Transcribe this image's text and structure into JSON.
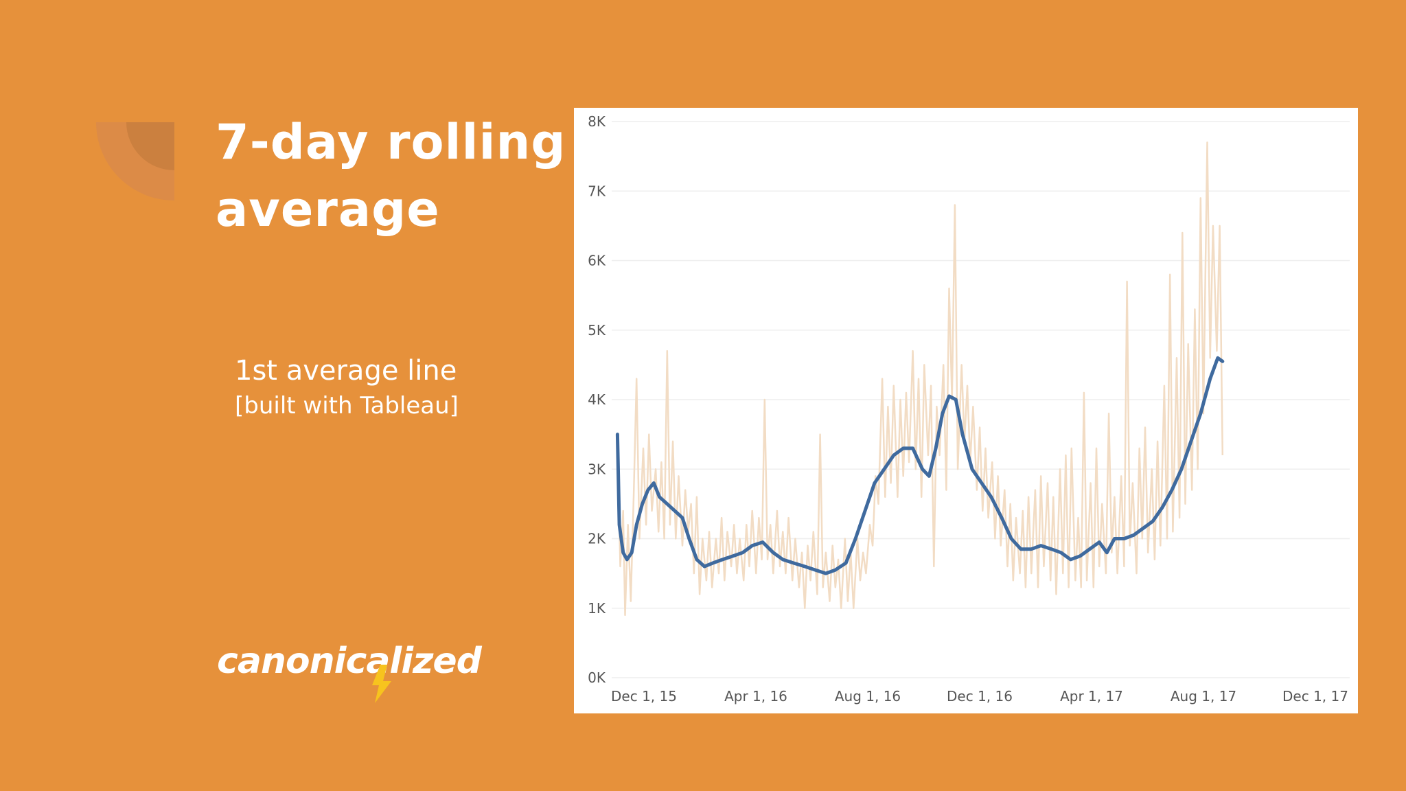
{
  "slide": {
    "title": "7-day rolling\naverage",
    "subtitle_line1": "1st average line",
    "subtitle_line2": "[built with Tableau]",
    "logo_text": "canonicalized"
  },
  "colors": {
    "background": "#E6913B",
    "raw_line": "#F2DCC4",
    "average_line": "#3F6A9E",
    "gridline": "#EEEEEE"
  },
  "chart_data": {
    "type": "line",
    "title": "",
    "xlabel": "",
    "ylabel": "",
    "x_ticks": [
      "Dec 1, 15",
      "Apr 1, 16",
      "Aug 1, 16",
      "Dec 1, 16",
      "Apr 1, 17",
      "Aug 1, 17",
      "Dec 1, 17"
    ],
    "y_ticks": [
      "0K",
      "1K",
      "2K",
      "3K",
      "4K",
      "5K",
      "6K",
      "7K",
      "8K"
    ],
    "ylim": [
      0,
      8000
    ],
    "x_range": [
      "2015-11-25",
      "2018-01-05"
    ],
    "grid": true,
    "legend": "none",
    "series": [
      {
        "role": "daily",
        "color": "#F2DCC4",
        "points": [
          [
            "2015-12-01",
            3500
          ],
          [
            "2015-12-04",
            1600
          ],
          [
            "2015-12-07",
            2400
          ],
          [
            "2015-12-09",
            900
          ],
          [
            "2015-12-12",
            2200
          ],
          [
            "2015-12-15",
            1100
          ],
          [
            "2015-12-18",
            2600
          ],
          [
            "2015-12-21",
            4300
          ],
          [
            "2015-12-24",
            2000
          ],
          [
            "2015-12-28",
            3300
          ],
          [
            "2015-12-31",
            2200
          ],
          [
            "2016-01-03",
            3500
          ],
          [
            "2016-01-06",
            2400
          ],
          [
            "2016-01-10",
            3000
          ],
          [
            "2016-01-13",
            2100
          ],
          [
            "2016-01-16",
            3100
          ],
          [
            "2016-01-19",
            2000
          ],
          [
            "2016-01-22",
            4700
          ],
          [
            "2016-01-25",
            2200
          ],
          [
            "2016-01-28",
            3400
          ],
          [
            "2016-01-31",
            2000
          ],
          [
            "2016-02-03",
            2900
          ],
          [
            "2016-02-07",
            1900
          ],
          [
            "2016-02-10",
            2700
          ],
          [
            "2016-02-13",
            2100
          ],
          [
            "2016-02-16",
            2500
          ],
          [
            "2016-02-19",
            1500
          ],
          [
            "2016-02-22",
            2600
          ],
          [
            "2016-02-25",
            1200
          ],
          [
            "2016-02-28",
            2000
          ],
          [
            "2016-03-03",
            1400
          ],
          [
            "2016-03-06",
            2100
          ],
          [
            "2016-03-09",
            1300
          ],
          [
            "2016-03-13",
            2000
          ],
          [
            "2016-03-16",
            1500
          ],
          [
            "2016-03-19",
            2300
          ],
          [
            "2016-03-22",
            1400
          ],
          [
            "2016-03-25",
            2100
          ],
          [
            "2016-03-29",
            1600
          ],
          [
            "2016-04-01",
            2200
          ],
          [
            "2016-04-04",
            1500
          ],
          [
            "2016-04-07",
            2000
          ],
          [
            "2016-04-11",
            1400
          ],
          [
            "2016-04-14",
            2200
          ],
          [
            "2016-04-17",
            1600
          ],
          [
            "2016-04-20",
            2400
          ],
          [
            "2016-04-24",
            1500
          ],
          [
            "2016-04-27",
            2300
          ],
          [
            "2016-04-30",
            1700
          ],
          [
            "2016-05-03",
            4000
          ],
          [
            "2016-05-06",
            1700
          ],
          [
            "2016-05-09",
            2200
          ],
          [
            "2016-05-12",
            1500
          ],
          [
            "2016-05-16",
            2400
          ],
          [
            "2016-05-19",
            1600
          ],
          [
            "2016-05-22",
            2100
          ],
          [
            "2016-05-25",
            1500
          ],
          [
            "2016-05-28",
            2300
          ],
          [
            "2016-06-01",
            1400
          ],
          [
            "2016-06-04",
            2000
          ],
          [
            "2016-06-08",
            1300
          ],
          [
            "2016-06-11",
            1800
          ],
          [
            "2016-06-14",
            1000
          ],
          [
            "2016-06-17",
            1900
          ],
          [
            "2016-06-20",
            1400
          ],
          [
            "2016-06-23",
            2100
          ],
          [
            "2016-06-27",
            1200
          ],
          [
            "2016-06-30",
            3500
          ],
          [
            "2016-07-03",
            1300
          ],
          [
            "2016-07-06",
            1800
          ],
          [
            "2016-07-10",
            1100
          ],
          [
            "2016-07-13",
            1900
          ],
          [
            "2016-07-16",
            1300
          ],
          [
            "2016-07-19",
            1700
          ],
          [
            "2016-07-22",
            1000
          ],
          [
            "2016-07-26",
            2000
          ],
          [
            "2016-07-29",
            1100
          ],
          [
            "2016-08-01",
            1800
          ],
          [
            "2016-08-04",
            1000
          ],
          [
            "2016-08-08",
            2000
          ],
          [
            "2016-08-11",
            1400
          ],
          [
            "2016-08-14",
            1800
          ],
          [
            "2016-08-17",
            1500
          ],
          [
            "2016-08-21",
            2200
          ],
          [
            "2016-08-24",
            1900
          ],
          [
            "2016-08-27",
            2900
          ],
          [
            "2016-08-30",
            2500
          ],
          [
            "2016-09-03",
            4300
          ],
          [
            "2016-09-06",
            2600
          ],
          [
            "2016-09-09",
            3900
          ],
          [
            "2016-09-12",
            2800
          ],
          [
            "2016-09-15",
            4200
          ],
          [
            "2016-09-19",
            2600
          ],
          [
            "2016-09-22",
            4000
          ],
          [
            "2016-09-25",
            2900
          ],
          [
            "2016-09-28",
            4100
          ],
          [
            "2016-10-01",
            3100
          ],
          [
            "2016-10-05",
            4700
          ],
          [
            "2016-10-08",
            3000
          ],
          [
            "2016-10-11",
            4300
          ],
          [
            "2016-10-14",
            2600
          ],
          [
            "2016-10-17",
            4500
          ],
          [
            "2016-10-21",
            3200
          ],
          [
            "2016-10-24",
            4200
          ],
          [
            "2016-10-27",
            1600
          ],
          [
            "2016-10-30",
            3900
          ],
          [
            "2016-11-02",
            3200
          ],
          [
            "2016-11-06",
            4500
          ],
          [
            "2016-11-09",
            2700
          ],
          [
            "2016-11-12",
            5600
          ],
          [
            "2016-11-15",
            4000
          ],
          [
            "2016-11-18",
            6800
          ],
          [
            "2016-11-21",
            3000
          ],
          [
            "2016-11-25",
            4500
          ],
          [
            "2016-11-28",
            3400
          ],
          [
            "2016-12-01",
            4200
          ],
          [
            "2016-12-04",
            3100
          ],
          [
            "2016-12-07",
            3900
          ],
          [
            "2016-12-11",
            2700
          ],
          [
            "2016-12-14",
            3600
          ],
          [
            "2016-12-17",
            2400
          ],
          [
            "2016-12-20",
            3300
          ],
          [
            "2016-12-23",
            2300
          ],
          [
            "2016-12-27",
            3100
          ],
          [
            "2016-12-30",
            2000
          ],
          [
            "2017-01-02",
            2900
          ],
          [
            "2017-01-05",
            1900
          ],
          [
            "2017-01-09",
            2700
          ],
          [
            "2017-01-12",
            1600
          ],
          [
            "2017-01-15",
            2500
          ],
          [
            "2017-01-18",
            1400
          ],
          [
            "2017-01-21",
            2300
          ],
          [
            "2017-01-25",
            1500
          ],
          [
            "2017-01-28",
            2400
          ],
          [
            "2017-01-31",
            1300
          ],
          [
            "2017-02-03",
            2600
          ],
          [
            "2017-02-06",
            1500
          ],
          [
            "2017-02-10",
            2700
          ],
          [
            "2017-02-13",
            1300
          ],
          [
            "2017-02-16",
            2900
          ],
          [
            "2017-02-19",
            1600
          ],
          [
            "2017-02-23",
            2800
          ],
          [
            "2017-02-26",
            1400
          ],
          [
            "2017-03-01",
            2600
          ],
          [
            "2017-03-04",
            1200
          ],
          [
            "2017-03-08",
            3000
          ],
          [
            "2017-03-11",
            1500
          ],
          [
            "2017-03-14",
            3200
          ],
          [
            "2017-03-17",
            1300
          ],
          [
            "2017-03-20",
            3300
          ],
          [
            "2017-03-24",
            1400
          ],
          [
            "2017-03-27",
            2300
          ],
          [
            "2017-03-30",
            1300
          ],
          [
            "2017-04-02",
            4100
          ],
          [
            "2017-04-05",
            1400
          ],
          [
            "2017-04-09",
            2800
          ],
          [
            "2017-04-12",
            1300
          ],
          [
            "2017-04-15",
            3300
          ],
          [
            "2017-04-18",
            1600
          ],
          [
            "2017-04-21",
            2500
          ],
          [
            "2017-04-25",
            1500
          ],
          [
            "2017-04-28",
            3800
          ],
          [
            "2017-05-01",
            1800
          ],
          [
            "2017-05-04",
            2600
          ],
          [
            "2017-05-07",
            1500
          ],
          [
            "2017-05-11",
            2900
          ],
          [
            "2017-05-14",
            1600
          ],
          [
            "2017-05-17",
            5700
          ],
          [
            "2017-05-20",
            1900
          ],
          [
            "2017-05-23",
            2800
          ],
          [
            "2017-05-27",
            1500
          ],
          [
            "2017-05-30",
            3300
          ],
          [
            "2017-06-02",
            2000
          ],
          [
            "2017-06-05",
            3600
          ],
          [
            "2017-06-08",
            1800
          ],
          [
            "2017-06-12",
            3000
          ],
          [
            "2017-06-15",
            1700
          ],
          [
            "2017-06-18",
            3400
          ],
          [
            "2017-06-21",
            1900
          ],
          [
            "2017-06-25",
            4200
          ],
          [
            "2017-06-28",
            2000
          ],
          [
            "2017-07-01",
            5800
          ],
          [
            "2017-07-04",
            2100
          ],
          [
            "2017-07-08",
            4600
          ],
          [
            "2017-07-11",
            2300
          ],
          [
            "2017-07-14",
            6400
          ],
          [
            "2017-07-17",
            2500
          ],
          [
            "2017-07-20",
            4800
          ],
          [
            "2017-07-24",
            2700
          ],
          [
            "2017-07-27",
            5300
          ],
          [
            "2017-07-30",
            3000
          ],
          [
            "2017-08-02",
            6900
          ],
          [
            "2017-08-05",
            3800
          ],
          [
            "2017-08-09",
            7700
          ],
          [
            "2017-08-12",
            4600
          ],
          [
            "2017-08-15",
            6500
          ],
          [
            "2017-08-19",
            4700
          ],
          [
            "2017-08-22",
            6500
          ],
          [
            "2017-08-25",
            3200
          ]
        ]
      },
      {
        "role": "7-day rolling average",
        "color": "#3F6A9E",
        "points": [
          [
            "2015-12-01",
            3500
          ],
          [
            "2015-12-03",
            2200
          ],
          [
            "2015-12-07",
            1800
          ],
          [
            "2015-12-11",
            1700
          ],
          [
            "2015-12-16",
            1800
          ],
          [
            "2015-12-21",
            2200
          ],
          [
            "2015-12-27",
            2500
          ],
          [
            "2016-01-02",
            2700
          ],
          [
            "2016-01-08",
            2800
          ],
          [
            "2016-01-14",
            2600
          ],
          [
            "2016-01-22",
            2500
          ],
          [
            "2016-01-30",
            2400
          ],
          [
            "2016-02-07",
            2300
          ],
          [
            "2016-02-14",
            2000
          ],
          [
            "2016-02-22",
            1700
          ],
          [
            "2016-03-01",
            1600
          ],
          [
            "2016-03-10",
            1650
          ],
          [
            "2016-03-20",
            1700
          ],
          [
            "2016-03-31",
            1750
          ],
          [
            "2016-04-10",
            1800
          ],
          [
            "2016-04-20",
            1900
          ],
          [
            "2016-05-01",
            1950
          ],
          [
            "2016-05-12",
            1800
          ],
          [
            "2016-05-22",
            1700
          ],
          [
            "2016-06-02",
            1650
          ],
          [
            "2016-06-14",
            1600
          ],
          [
            "2016-06-25",
            1550
          ],
          [
            "2016-07-06",
            1500
          ],
          [
            "2016-07-16",
            1550
          ],
          [
            "2016-07-27",
            1650
          ],
          [
            "2016-08-06",
            2000
          ],
          [
            "2016-08-16",
            2400
          ],
          [
            "2016-08-26",
            2800
          ],
          [
            "2016-09-05",
            3000
          ],
          [
            "2016-09-15",
            3200
          ],
          [
            "2016-09-25",
            3300
          ],
          [
            "2016-10-05",
            3300
          ],
          [
            "2016-10-15",
            3000
          ],
          [
            "2016-10-22",
            2900
          ],
          [
            "2016-10-29",
            3300
          ],
          [
            "2016-11-05",
            3800
          ],
          [
            "2016-11-12",
            4050
          ],
          [
            "2016-11-19",
            4000
          ],
          [
            "2016-11-26",
            3500
          ],
          [
            "2016-12-06",
            3000
          ],
          [
            "2016-12-16",
            2800
          ],
          [
            "2016-12-26",
            2600
          ],
          [
            "2017-01-06",
            2300
          ],
          [
            "2017-01-16",
            2000
          ],
          [
            "2017-01-26",
            1850
          ],
          [
            "2017-02-06",
            1850
          ],
          [
            "2017-02-16",
            1900
          ],
          [
            "2017-02-27",
            1850
          ],
          [
            "2017-03-09",
            1800
          ],
          [
            "2017-03-19",
            1700
          ],
          [
            "2017-03-29",
            1750
          ],
          [
            "2017-04-08",
            1850
          ],
          [
            "2017-04-18",
            1950
          ],
          [
            "2017-04-26",
            1800
          ],
          [
            "2017-05-04",
            2000
          ],
          [
            "2017-05-14",
            2000
          ],
          [
            "2017-05-24",
            2050
          ],
          [
            "2017-06-03",
            2150
          ],
          [
            "2017-06-13",
            2250
          ],
          [
            "2017-06-23",
            2450
          ],
          [
            "2017-07-03",
            2700
          ],
          [
            "2017-07-13",
            3000
          ],
          [
            "2017-07-23",
            3400
          ],
          [
            "2017-08-02",
            3800
          ],
          [
            "2017-08-12",
            4300
          ],
          [
            "2017-08-20",
            4600
          ],
          [
            "2017-08-25",
            4550
          ]
        ]
      }
    ]
  }
}
